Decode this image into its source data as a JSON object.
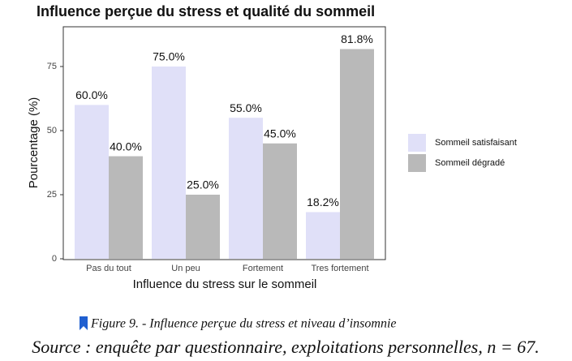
{
  "chart_data": {
    "type": "bar",
    "title": "Influence perçue du stress et qualité du sommeil",
    "x_label": "Influence du stress sur le sommeil",
    "y_label": "Pourcentage (%)",
    "categories": [
      "Pas du tout",
      "Un peu",
      "Fortement",
      "Tres fortement"
    ],
    "series": [
      {
        "name": "Sommeil satisfaisant",
        "color": "#e0e0f8",
        "values": [
          60,
          75,
          55,
          18.2
        ],
        "value_labels": [
          "60.0%",
          "75.0%",
          "55.0%",
          "18.2%"
        ]
      },
      {
        "name": "Sommeil dégradé",
        "color": "#b9b9b9",
        "values": [
          40,
          25,
          45,
          81.8
        ],
        "value_labels": [
          "40.0%",
          "25.0%",
          "45.0%",
          "81.8%"
        ]
      }
    ],
    "ylim": [
      0,
      90.5
    ],
    "yticks": [
      0,
      25,
      50,
      75
    ],
    "grid": false,
    "legend": "right"
  },
  "caption": "Figure 9. - Influence perçue du stress et niveau d’insomnie",
  "source": "Source : enquête par questionnaire, exploitations personnelles, n = 67."
}
